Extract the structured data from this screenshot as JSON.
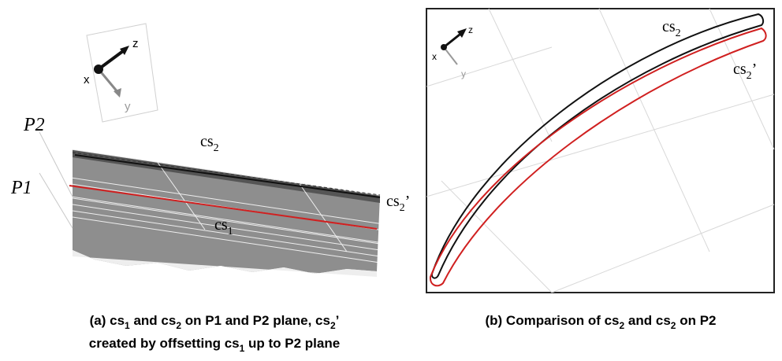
{
  "panel_a": {
    "axes": {
      "z": "z",
      "x": "x",
      "y": "y"
    },
    "planes": {
      "p2": "P2",
      "p1": "P1"
    },
    "labels": {
      "cs2": [
        "cs",
        "2"
      ],
      "cs2_offset": [
        "cs",
        "2",
        "’"
      ],
      "cs1": [
        "cs",
        "1"
      ]
    },
    "caption": [
      [
        "(a) cs",
        "1",
        " and cs",
        "2",
        " on P1 and P2 plane, cs",
        "2",
        "’"
      ],
      [
        "created by offsetting cs",
        "1",
        " up to P2 plane"
      ]
    ]
  },
  "panel_b": {
    "axes": {
      "z": "z",
      "x": "x",
      "y": "y"
    },
    "labels": {
      "cs2": [
        "cs",
        "2"
      ],
      "cs2_offset": [
        "cs",
        "2",
        "’"
      ]
    },
    "caption": [
      [
        "(b) Comparison of cs",
        "2",
        " and cs",
        "2",
        " on P2"
      ]
    ]
  }
}
